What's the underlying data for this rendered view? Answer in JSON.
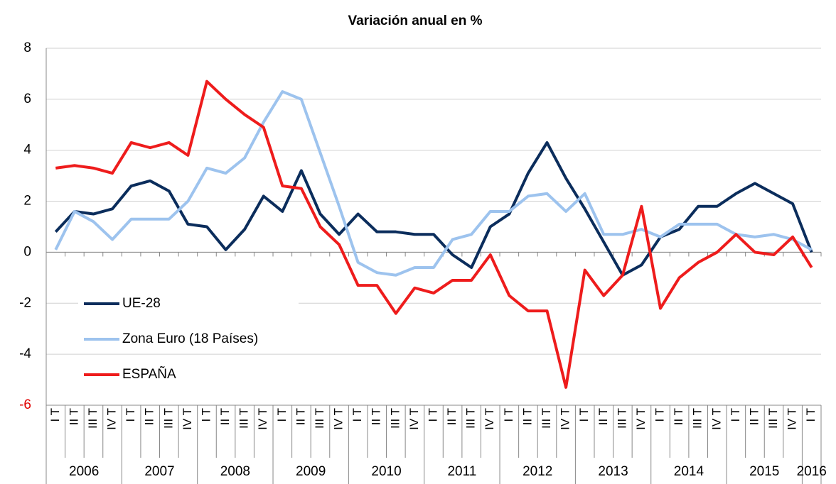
{
  "chart_data": {
    "type": "line",
    "title": "Variación anual en %",
    "categories": [
      "I T",
      "II T",
      "III T",
      "IV T",
      "I T",
      "II T",
      "III T",
      "IV T",
      "I T",
      "II T",
      "III T",
      "IV T",
      "I T",
      "II T",
      "III T",
      "IV T",
      "I T",
      "II T",
      "III T",
      "IV T",
      "I T",
      "II T",
      "III T",
      "IV T",
      "I T",
      "II T",
      "III T",
      "IV T",
      "I T",
      "II T",
      "III T",
      "IV T",
      "I T",
      "II T",
      "III T",
      "IV T",
      "I T",
      "II T",
      "III T",
      "IV T",
      "I T"
    ],
    "years": [
      "2006",
      "2007",
      "2008",
      "2009",
      "2010",
      "2011",
      "2012",
      "2013",
      "2014",
      "2015",
      "2016"
    ],
    "series": [
      {
        "name": "UE-28",
        "color": "#0b2d5c",
        "values": [
          0.8,
          1.6,
          1.5,
          1.7,
          2.6,
          2.8,
          2.4,
          1.1,
          1.0,
          0.1,
          0.9,
          2.2,
          1.6,
          3.2,
          1.5,
          0.7,
          1.5,
          0.8,
          0.8,
          0.7,
          0.7,
          -0.1,
          -0.6,
          1.0,
          1.5,
          3.1,
          4.3,
          2.9,
          1.7,
          0.4,
          -0.9,
          -0.5,
          0.6,
          0.9,
          1.8,
          1.8,
          2.3,
          2.7,
          2.3,
          1.9,
          0.0
        ]
      },
      {
        "name": "Zona Euro (18 Países)",
        "color": "#9dc3ee",
        "values": [
          0.1,
          1.6,
          1.2,
          0.5,
          1.3,
          1.3,
          1.3,
          2.0,
          3.3,
          3.1,
          3.7,
          5.1,
          6.3,
          6.0,
          3.9,
          1.8,
          -0.4,
          -0.8,
          -0.9,
          -0.6,
          -0.6,
          0.5,
          0.7,
          1.6,
          1.6,
          2.2,
          2.3,
          1.6,
          2.3,
          0.7,
          0.7,
          0.9,
          0.6,
          1.1,
          1.1,
          1.1,
          0.7,
          0.6,
          0.7,
          0.5,
          0.1
        ]
      },
      {
        "name": "ESPAÑA",
        "color": "#ee1c1c",
        "values": [
          3.3,
          3.4,
          3.3,
          3.1,
          4.3,
          4.1,
          4.3,
          3.8,
          6.7,
          6.0,
          5.4,
          4.9,
          2.6,
          2.5,
          1.0,
          0.3,
          -1.3,
          -1.3,
          -2.4,
          -1.4,
          -1.6,
          -1.1,
          -1.1,
          -0.1,
          -1.7,
          -2.3,
          -2.3,
          -5.3,
          -0.7,
          -1.7,
          -0.9,
          1.8,
          -2.2,
          -1.0,
          -0.4,
          0.0,
          0.7,
          0.0,
          -0.1,
          0.6,
          -0.6
        ]
      }
    ],
    "ylim": [
      -6,
      8
    ],
    "yticks": [
      -6,
      -4,
      -2,
      0,
      2,
      4,
      6,
      8
    ],
    "grid": true
  }
}
